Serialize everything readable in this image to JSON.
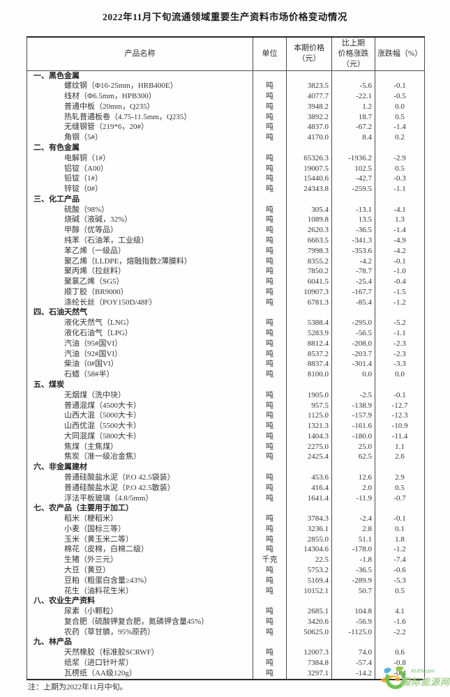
{
  "title": "2022年11月下旬流通领域重要生产资料市场价格变动情况",
  "table": {
    "headers": {
      "product": "产品名称",
      "unit": "单位",
      "price": "本期价格\n（元）",
      "change": "比上期\n价格涨跌\n（元）",
      "pct": "涨跌幅（%）"
    },
    "sections": [
      {
        "name": "一、黑色金属",
        "rows": [
          {
            "name": "螺纹钢（Φ16-25mm，HRB400E）",
            "unit": "吨",
            "price": "3823.5",
            "change": "-5.6",
            "pct": "-0.1"
          },
          {
            "name": "线材（Φ6.5mm，HPB300）",
            "unit": "吨",
            "price": "4077.7",
            "change": "-22.1",
            "pct": "-0.5"
          },
          {
            "name": "普通中板（20mm，Q235）",
            "unit": "吨",
            "price": "3948.2",
            "change": "1.2",
            "pct": "0.0"
          },
          {
            "name": "热轧普通板卷（4.75-11.5mm，Q235）",
            "unit": "吨",
            "price": "3892.2",
            "change": "18.7",
            "pct": "0.5"
          },
          {
            "name": "无缝钢管（219*6，20#）",
            "unit": "吨",
            "price": "4837.0",
            "change": "-67.2",
            "pct": "-1.4"
          },
          {
            "name": "角钢（5#）",
            "unit": "吨",
            "price": "4170.0",
            "change": "8.4",
            "pct": "0.2"
          }
        ]
      },
      {
        "name": "二、有色金属",
        "rows": [
          {
            "name": "电解铜（1#）",
            "unit": "吨",
            "price": "65326.3",
            "change": "-1936.2",
            "pct": "-2.9"
          },
          {
            "name": "铝锭（A00）",
            "unit": "吨",
            "price": "19007.5",
            "change": "102.5",
            "pct": "0.5"
          },
          {
            "name": "铅锭（1#）",
            "unit": "吨",
            "price": "15440.6",
            "change": "-42.7",
            "pct": "-0.3"
          },
          {
            "name": "锌锭（0#）",
            "unit": "吨",
            "price": "24343.8",
            "change": "-259.5",
            "pct": "-1.1"
          }
        ]
      },
      {
        "name": "三、化工产品",
        "rows": [
          {
            "name": "硫酸（98%）",
            "unit": "吨",
            "price": "305.4",
            "change": "-13.1",
            "pct": "-4.1"
          },
          {
            "name": "烧碱（液碱，32%）",
            "unit": "吨",
            "price": "1089.8",
            "change": "13.5",
            "pct": "1.3"
          },
          {
            "name": "甲醇（优等品）",
            "unit": "吨",
            "price": "2620.3",
            "change": "-36.5",
            "pct": "-1.4"
          },
          {
            "name": "纯苯（石油苯，工业级）",
            "unit": "吨",
            "price": "6663.5",
            "change": "-341.3",
            "pct": "-4.9"
          },
          {
            "name": "苯乙烯（一级品）",
            "unit": "吨",
            "price": "7998.3",
            "change": "-353.6",
            "pct": "-4.2"
          },
          {
            "name": "聚乙烯（LLDPE，熔融指数2薄膜料）",
            "unit": "吨",
            "price": "8355.2",
            "change": "-4.2",
            "pct": "-0.1"
          },
          {
            "name": "聚丙烯（拉丝料）",
            "unit": "吨",
            "price": "7850.2",
            "change": "-78.7",
            "pct": "-1.0"
          },
          {
            "name": "聚氯乙烯（SG5）",
            "unit": "吨",
            "price": "6041.5",
            "change": "-25.4",
            "pct": "-0.4"
          },
          {
            "name": "顺丁胶（BR9000）",
            "unit": "吨",
            "price": "10907.3",
            "change": "-167.7",
            "pct": "-1.5"
          },
          {
            "name": "涤纶长丝（POY150D/48F）",
            "unit": "吨",
            "price": "6781.3",
            "change": "-85.4",
            "pct": "-1.2"
          }
        ]
      },
      {
        "name": "四、石油天然气",
        "rows": [
          {
            "name": "液化天然气（LNG）",
            "unit": "吨",
            "price": "5388.4",
            "change": "-295.0",
            "pct": "-5.2"
          },
          {
            "name": "液化石油气（LPG）",
            "unit": "吨",
            "price": "5283.9",
            "change": "-56.5",
            "pct": "-1.1"
          },
          {
            "name": "汽油（95#国VI）",
            "unit": "吨",
            "price": "8812.4",
            "change": "-208.0",
            "pct": "-2.3"
          },
          {
            "name": "汽油（92#国VI）",
            "unit": "吨",
            "price": "8537.2",
            "change": "-203.7",
            "pct": "-2.3"
          },
          {
            "name": "柴油（0#国VI）",
            "unit": "吨",
            "price": "8837.4",
            "change": "-301.4",
            "pct": "-3.3"
          },
          {
            "name": "石蜡（58#半）",
            "unit": "吨",
            "price": "8100.0",
            "change": "0.0",
            "pct": "0.0"
          }
        ]
      },
      {
        "name": "五、煤炭",
        "rows": [
          {
            "name": "无烟煤（洗中块）",
            "unit": "吨",
            "price": "1905.0",
            "change": "-2.5",
            "pct": "-0.1"
          },
          {
            "name": "普通混煤（4500大卡）",
            "unit": "吨",
            "price": "957.5",
            "change": "-138.9",
            "pct": "-12.7"
          },
          {
            "name": "山西大混（5000大卡）",
            "unit": "吨",
            "price": "1125.0",
            "change": "-157.9",
            "pct": "-12.3"
          },
          {
            "name": "山西优混（5500大卡）",
            "unit": "吨",
            "price": "1321.3",
            "change": "-161.6",
            "pct": "-10.9"
          },
          {
            "name": "大同混煤（5800大卡）",
            "unit": "吨",
            "price": "1404.3",
            "change": "-180.0",
            "pct": "-11.4"
          },
          {
            "name": "焦煤（主焦煤）",
            "unit": "吨",
            "price": "2275.0",
            "change": "25.0",
            "pct": "1.1"
          },
          {
            "name": "焦炭（准一级冶金焦）",
            "unit": "吨",
            "price": "2425.4",
            "change": "62.5",
            "pct": "2.6"
          }
        ]
      },
      {
        "name": "六、非金属建材",
        "rows": [
          {
            "name": "普通硅酸盐水泥（P.O 42.5袋装）",
            "unit": "吨",
            "price": "453.6",
            "change": "12.6",
            "pct": "2.9"
          },
          {
            "name": "普通硅酸盐水泥（P.O 42.5散装）",
            "unit": "吨",
            "price": "416.4",
            "change": "2.0",
            "pct": "0.5"
          },
          {
            "name": "浮法平板玻璃（4.8/5mm）",
            "unit": "吨",
            "price": "1641.4",
            "change": "-11.9",
            "pct": "-0.7"
          }
        ]
      },
      {
        "name": "七、农产品（主要用于加工）",
        "rows": [
          {
            "name": "稻米（粳稻米）",
            "unit": "吨",
            "price": "3784.3",
            "change": "-2.4",
            "pct": "-0.1"
          },
          {
            "name": "小麦（国标三等）",
            "unit": "吨",
            "price": "3236.1",
            "change": "2.8",
            "pct": "0.1"
          },
          {
            "name": "玉米（黄玉米二等）",
            "unit": "吨",
            "price": "2855.0",
            "change": "51.1",
            "pct": "1.8"
          },
          {
            "name": "棉花（皮棉，白棉二级）",
            "unit": "吨",
            "price": "14304.6",
            "change": "-178.0",
            "pct": "-1.2"
          },
          {
            "name": "生猪（外三元）",
            "unit": "千克",
            "price": "22.5",
            "change": "-1.8",
            "pct": "-7.4"
          },
          {
            "name": "大豆（黄豆）",
            "unit": "吨",
            "price": "5753.2",
            "change": "-36.5",
            "pct": "-0.6"
          },
          {
            "name": "豆粕（粗蛋白含量≥43%）",
            "unit": "吨",
            "price": "5169.4",
            "change": "-289.9",
            "pct": "-5.3"
          },
          {
            "name": "花生（油料花生米）",
            "unit": "吨",
            "price": "10152.1",
            "change": "50.7",
            "pct": "0.5"
          }
        ]
      },
      {
        "name": "八、农业生产资料",
        "rows": [
          {
            "name": "尿素（小颗粒）",
            "unit": "吨",
            "price": "2685.1",
            "change": "104.8",
            "pct": "4.1"
          },
          {
            "name": "复合肥（硫酸钾复合肥，氮磷钾含量45%）",
            "unit": "吨",
            "price": "3420.6",
            "change": "-56.9",
            "pct": "-1.6"
          },
          {
            "name": "农药（草甘膦，95%原药）",
            "unit": "吨",
            "price": "50625.0",
            "change": "-1125.0",
            "pct": "-2.2"
          }
        ]
      },
      {
        "name": "九、林产品",
        "rows": [
          {
            "name": "天然橡胶（标准胶SCRWF）",
            "unit": "吨",
            "price": "12007.3",
            "change": "74.0",
            "pct": "0.6"
          },
          {
            "name": "纸浆（进口针叶浆）",
            "unit": "吨",
            "price": "7384.8",
            "change": "-57.4",
            "pct": "-0.8"
          },
          {
            "name": "瓦楞纸（AA级120g）",
            "unit": "吨",
            "price": "3297.1",
            "change": "-14.2",
            "pct": "-0.4"
          }
        ]
      }
    ]
  },
  "note": "注：上期为2022年11月中旬。",
  "watermark": {
    "site": "IN-EN.com",
    "name": "国际能源网",
    "green": "#6abf4b",
    "orange": "#f7a823",
    "blue": "#3aa7dd"
  }
}
